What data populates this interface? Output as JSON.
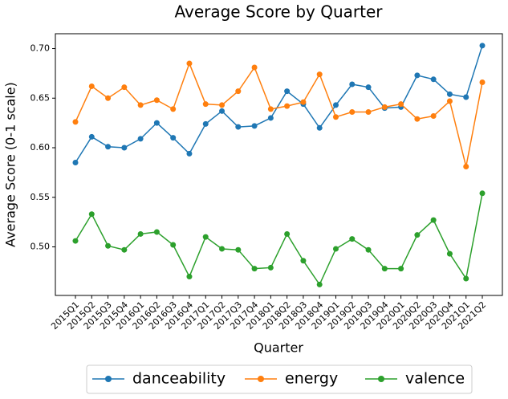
{
  "chart_data": {
    "type": "line",
    "title": "Average Score by Quarter",
    "x_label": "Quarter",
    "y_label": "Average Score (0-1 scale)",
    "categories": [
      "2015Q1",
      "2015Q2",
      "2015Q3",
      "2015Q4",
      "2016Q1",
      "2016Q2",
      "2016Q3",
      "2016Q4",
      "2017Q1",
      "2017Q2",
      "2017Q3",
      "2017Q4",
      "2018Q1",
      "2018Q2",
      "2018Q3",
      "2018Q4",
      "2019Q1",
      "2019Q2",
      "2019Q3",
      "2019Q4",
      "2020Q1",
      "2020Q2",
      "2020Q3",
      "2020Q4",
      "2021Q1",
      "2021Q2"
    ],
    "series": [
      {
        "name": "danceability",
        "color": "#1f77b4",
        "values": [
          0.585,
          0.611,
          0.601,
          0.6,
          0.609,
          0.625,
          0.61,
          0.594,
          0.624,
          0.637,
          0.621,
          0.622,
          0.63,
          0.657,
          0.644,
          0.62,
          0.643,
          0.664,
          0.661,
          0.64,
          0.641,
          0.673,
          0.669,
          0.654,
          0.651,
          0.703
        ]
      },
      {
        "name": "energy",
        "color": "#ff7f0e",
        "values": [
          0.626,
          0.662,
          0.65,
          0.661,
          0.643,
          0.648,
          0.639,
          0.685,
          0.644,
          0.643,
          0.657,
          0.681,
          0.639,
          0.642,
          0.646,
          0.674,
          0.631,
          0.636,
          0.636,
          0.641,
          0.644,
          0.629,
          0.632,
          0.647,
          0.581,
          0.666
        ]
      },
      {
        "name": "valence",
        "color": "#2ca02c",
        "values": [
          0.506,
          0.533,
          0.501,
          0.497,
          0.513,
          0.515,
          0.502,
          0.47,
          0.51,
          0.498,
          0.497,
          0.478,
          0.479,
          0.513,
          0.486,
          0.462,
          0.498,
          0.508,
          0.497,
          0.478,
          0.478,
          0.512,
          0.527,
          0.493,
          0.468,
          0.554
        ]
      }
    ],
    "ylim": [
      0.451,
      0.715
    ],
    "yticks": [
      {
        "value": 0.5,
        "label": "0.50"
      },
      0.55,
      {
        "value": 0.6,
        "label": "0.60"
      },
      0.65,
      {
        "value": 0.7,
        "label": "0.70"
      }
    ],
    "legend": "bottom"
  }
}
